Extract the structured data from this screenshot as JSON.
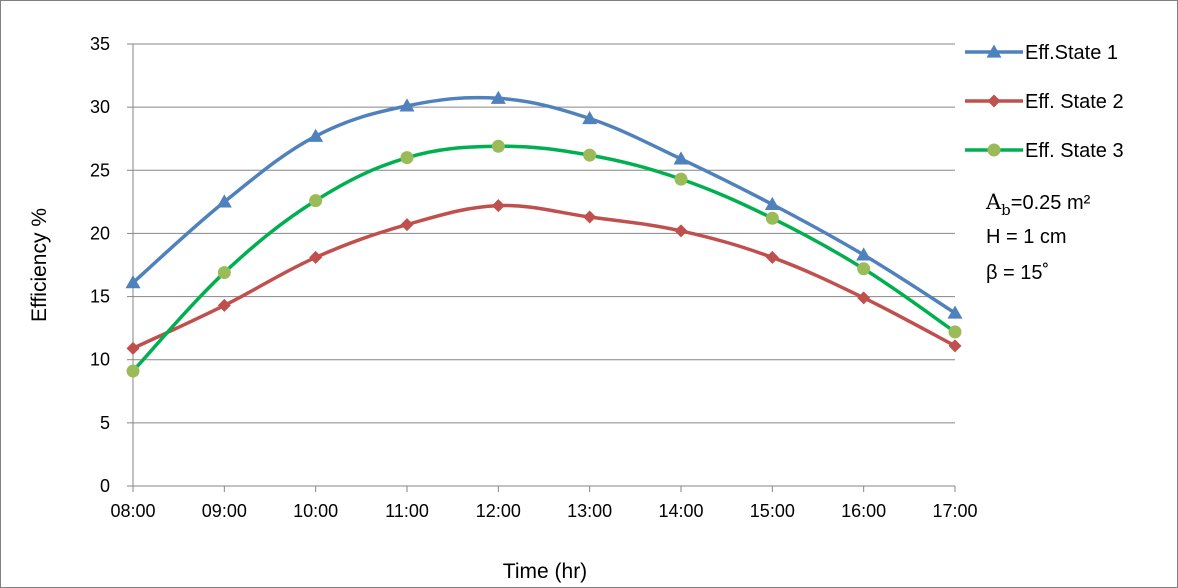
{
  "chart_data": {
    "type": "line",
    "title": "",
    "xlabel": "Time (hr)",
    "ylabel": "Efficiency %",
    "categories": [
      "08:00",
      "09:00",
      "10:00",
      "11:00",
      "12:00",
      "13:00",
      "14:00",
      "15:00",
      "16:00",
      "17:00"
    ],
    "ylim": [
      0,
      35
    ],
    "yticks": [
      0,
      5,
      10,
      15,
      20,
      25,
      30,
      35
    ],
    "grid": "horizontal",
    "legend_position": "right",
    "smooth": true,
    "series": [
      {
        "name": "Eff.State 1",
        "color": "#4F81BD",
        "marker": "triangle",
        "values": [
          16.1,
          22.5,
          27.7,
          30.1,
          30.7,
          29.1,
          25.9,
          22.3,
          18.3,
          13.7
        ]
      },
      {
        "name": "Eff. State 2",
        "color": "#C0504D",
        "marker": "diamond",
        "values": [
          10.9,
          14.3,
          18.1,
          20.7,
          22.2,
          21.3,
          20.2,
          18.1,
          14.9,
          11.1
        ]
      },
      {
        "name": "Eff. State 3",
        "color": "#00B050",
        "marker_color": "#9BBB59",
        "marker": "circle",
        "values": [
          9.1,
          16.9,
          22.6,
          26.0,
          26.9,
          26.2,
          24.3,
          21.2,
          17.2,
          12.2
        ]
      }
    ],
    "annotations": {
      "area_symbol": "A",
      "area_subscript": "b",
      "area_value": "=0.25 m²",
      "height": "H = 1 cm",
      "angle": "β = 15˚"
    }
  }
}
